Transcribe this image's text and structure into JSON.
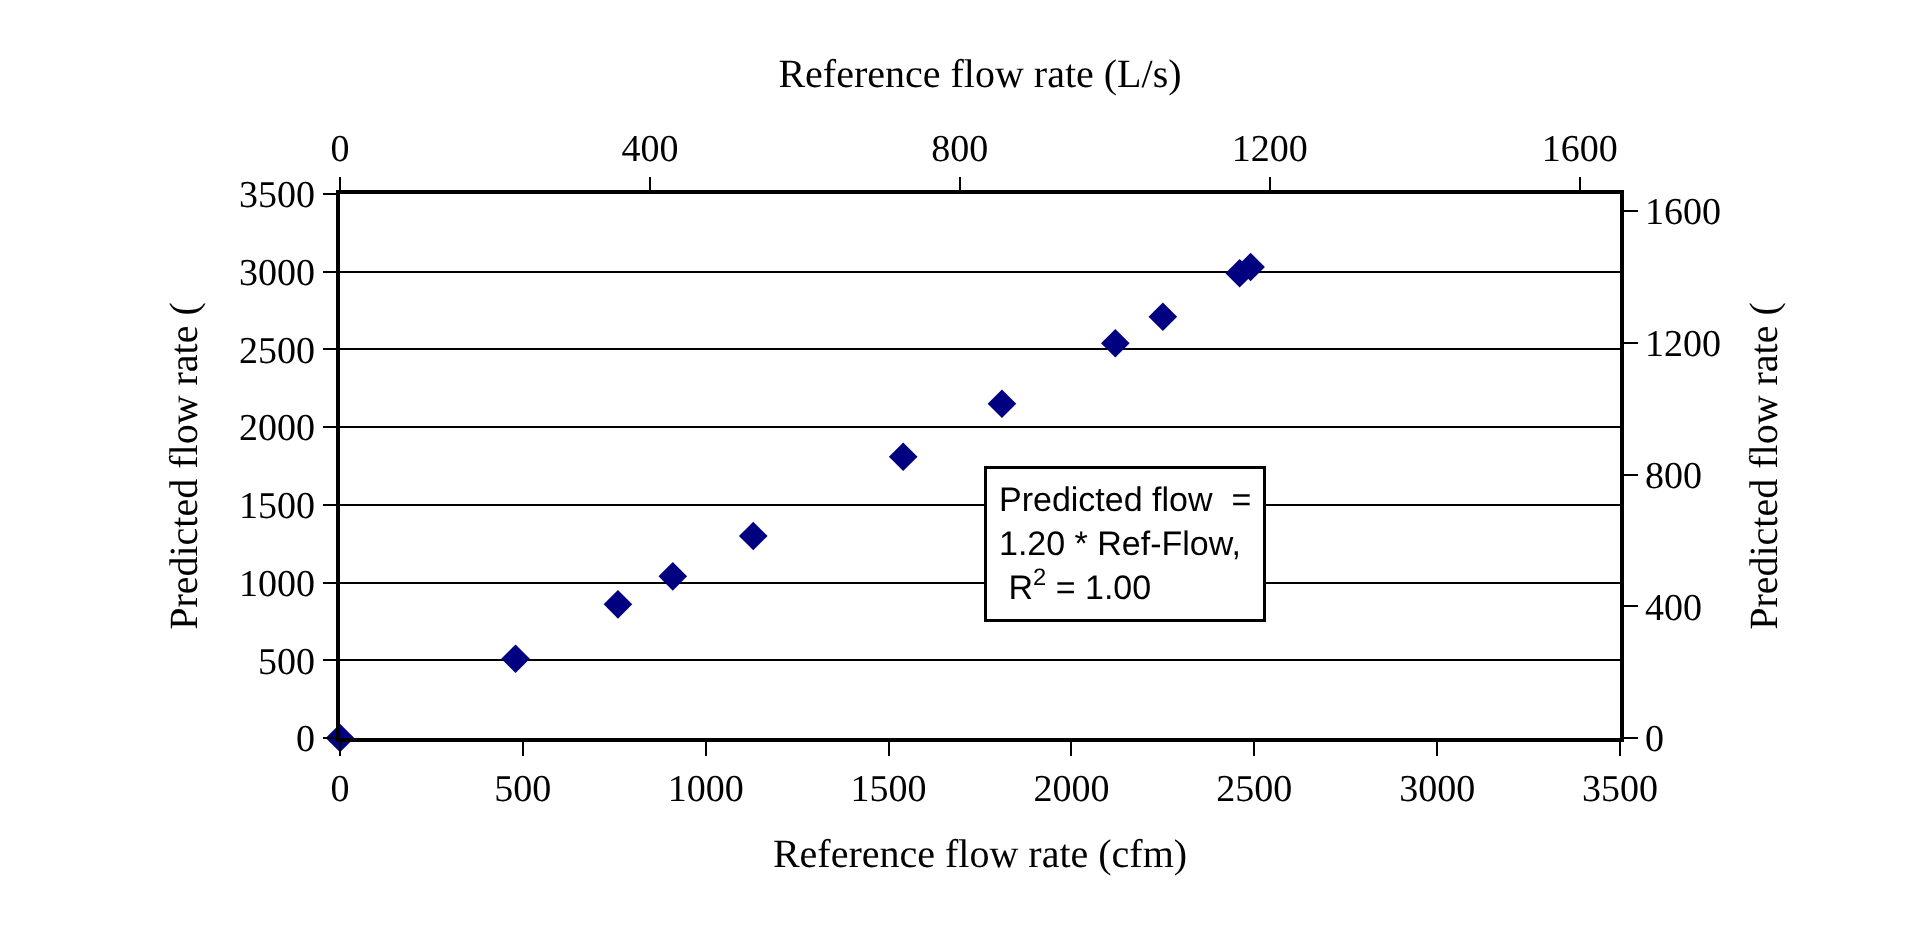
{
  "chart_data": {
    "type": "scatter",
    "xlabel": "Reference flow rate (cfm)",
    "ylabel": "Predicted flow rate (",
    "x2label": "Reference flow rate (L/s)",
    "y2label": "Predicted flow rate (",
    "x": [
      0,
      480,
      760,
      910,
      1130,
      1540,
      1810,
      2120,
      2250,
      2460,
      2490
    ],
    "series": [
      {
        "color": "#000080",
        "values": [
          0,
          510,
          860,
          1040,
          1300,
          1810,
          2150,
          2540,
          2710,
          2990,
          3030
        ]
      }
    ],
    "xlim": [
      0,
      3500
    ],
    "xticks": [
      0,
      500,
      1000,
      1500,
      2000,
      2500,
      3000,
      3500
    ],
    "ylim": [
      0,
      3500
    ],
    "yticks": [
      0,
      500,
      1000,
      1500,
      2000,
      2500,
      3000,
      3500
    ],
    "x2lim": [
      0,
      1652
    ],
    "x2ticks": [
      0,
      400,
      800,
      1200,
      1600
    ],
    "y2lim": [
      0,
      1652
    ],
    "y2ticks": [
      0,
      400,
      800,
      1200,
      1600
    ],
    "annotations": [
      "Predicted flow  =\n1.20 * Ref-Flow,\n R$^{2}$ = 1.00"
    ],
    "grid": "y",
    "marker": "diamond"
  }
}
